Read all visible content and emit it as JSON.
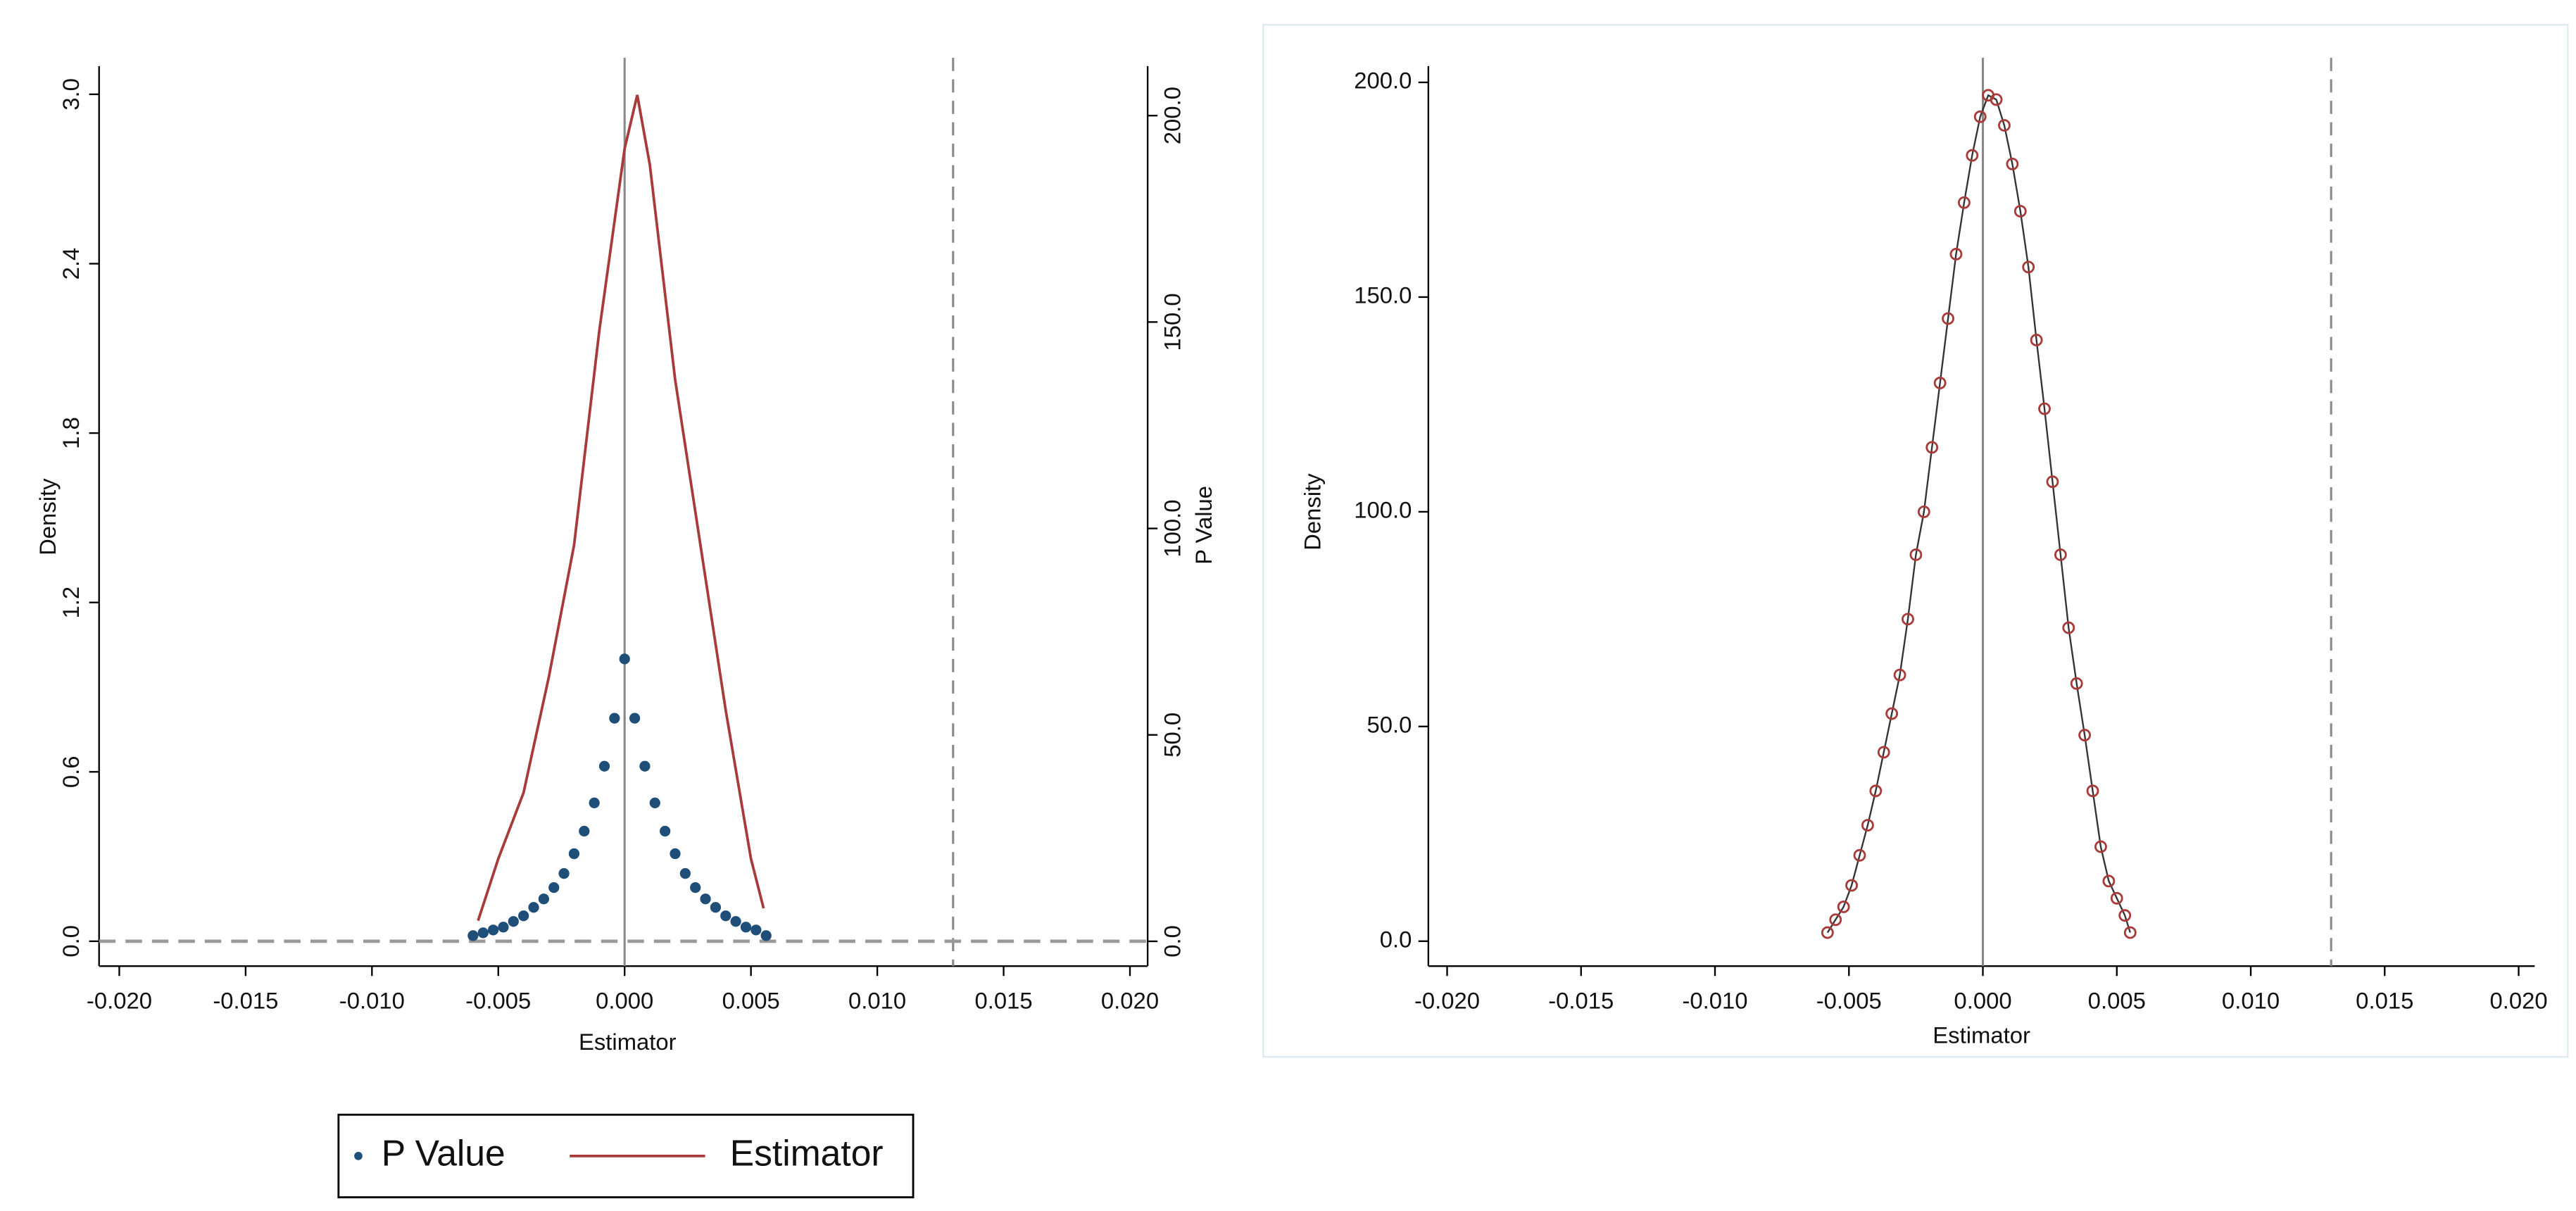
{
  "chart_data": [
    {
      "type": "overlay",
      "x_label": "Estimator",
      "y_label": "Density",
      "y2_label": "P Value",
      "xlim": [
        -0.0208,
        0.0207
      ],
      "xticks": [
        {
          "value": -0.02,
          "label": "-0.020"
        },
        -0.015,
        {
          "value": -0.01,
          "label": "-0.010"
        },
        -0.005,
        {
          "value": 0,
          "label": "0.000"
        },
        0.005,
        {
          "value": 0.01,
          "label": "0.010"
        },
        0.015,
        {
          "value": 0.02,
          "label": "0.020"
        }
      ],
      "ylim": [
        -0.088,
        3.1
      ],
      "yticks": [
        {
          "value": 0,
          "label": "0.0"
        },
        0.6,
        1.2,
        1.8,
        2.4,
        {
          "value": 3,
          "label": "3.0"
        }
      ],
      "y2lim": [
        -6,
        212
      ],
      "y2ticks": [
        {
          "value": 0,
          "label": "0.0"
        },
        {
          "value": 50,
          "label": "50.0"
        },
        {
          "value": 100,
          "label": "100.0"
        },
        {
          "value": 150,
          "label": "150.0"
        },
        {
          "value": 200,
          "label": "200.0"
        }
      ],
      "xlines": [
        {
          "value": 0,
          "style": "solid"
        },
        {
          "value": 0.013,
          "style": "dashed"
        }
      ],
      "ylines": [
        {
          "value": 0,
          "style": "dashed"
        }
      ],
      "legend": "bottom",
      "series": [
        {
          "name": "P Value",
          "kind": "scatter",
          "marker": "filled",
          "color": "#1f4e79",
          "axis": "y",
          "x": [
            -0.006,
            -0.0056,
            -0.0052,
            -0.0048,
            -0.0044,
            -0.004,
            -0.0036,
            -0.0032,
            -0.0028,
            -0.0024,
            -0.002,
            -0.0016,
            -0.0012,
            -0.0008,
            -0.0004,
            0,
            0.0004,
            0.0008,
            0.0012,
            0.0016,
            0.002,
            0.0024,
            0.0028,
            0.0032,
            0.0036,
            0.004,
            0.0044,
            0.0048,
            0.0052,
            0.0056
          ],
          "values": [
            0.02,
            0.03,
            0.04,
            0.05,
            0.07,
            0.09,
            0.12,
            0.15,
            0.19,
            0.24,
            0.31,
            0.39,
            0.49,
            0.62,
            0.79,
            1.0,
            0.79,
            0.62,
            0.49,
            0.39,
            0.31,
            0.24,
            0.19,
            0.15,
            0.12,
            0.09,
            0.07,
            0.05,
            0.04,
            0.02
          ]
        },
        {
          "name": "Estimator",
          "kind": "line",
          "color": "#a83a3a",
          "axis": "y2",
          "x": [
            -0.0058,
            -0.005,
            -0.004,
            -0.003,
            -0.002,
            -0.001,
            0,
            0.0005,
            0.001,
            0.002,
            0.003,
            0.004,
            0.005,
            0.0055
          ],
          "values": [
            5,
            20,
            36,
            64,
            96,
            148,
            192,
            205,
            188,
            136,
            96,
            56,
            20,
            8
          ]
        }
      ]
    },
    {
      "type": "scatter",
      "x_label": "Estimator",
      "y_label": "Density",
      "xlim": [
        -0.0207,
        0.0206
      ],
      "xticks": [
        {
          "value": -0.02,
          "label": "-0.020"
        },
        -0.015,
        {
          "value": -0.01,
          "label": "-0.010"
        },
        -0.005,
        {
          "value": 0,
          "label": "0.000"
        },
        0.005,
        {
          "value": 0.01,
          "label": "0.010"
        },
        0.015,
        {
          "value": 0.02,
          "label": "0.020"
        }
      ],
      "ylim": [
        -5.8,
        203.8
      ],
      "yticks": [
        {
          "value": 0,
          "label": "0.0"
        },
        {
          "value": 50,
          "label": "50.0"
        },
        {
          "value": 100,
          "label": "100.0"
        },
        {
          "value": 150,
          "label": "150.0"
        },
        {
          "value": 200,
          "label": "200.0"
        }
      ],
      "xlines": [
        {
          "value": 0,
          "style": "solid"
        },
        {
          "value": 0.013,
          "style": "dashed"
        }
      ],
      "line_color": "#333333",
      "series": [
        {
          "kind": "scatter",
          "marker": "hollow",
          "color": "#a83a3a",
          "axis": "y",
          "x": [
            -0.0058,
            -0.0055,
            -0.0052,
            -0.0049,
            -0.0046,
            -0.0043,
            -0.004,
            -0.0037,
            -0.0034,
            -0.0031,
            -0.0028,
            -0.0025,
            -0.0022,
            -0.0019,
            -0.0016,
            -0.0013,
            -0.001,
            -0.0007,
            -0.0004,
            -0.0001,
            0.0002,
            0.0005,
            0.0008,
            0.0011,
            0.0014,
            0.0017,
            0.002,
            0.0023,
            0.0026,
            0.0029,
            0.0032,
            0.0035,
            0.0038,
            0.0041,
            0.0044,
            0.0047,
            0.005,
            0.0053,
            0.0055
          ],
          "values": [
            2,
            5,
            8,
            13,
            20,
            27,
            35,
            44,
            53,
            62,
            75,
            90,
            100,
            115,
            130,
            145,
            160,
            172,
            183,
            192,
            197,
            196,
            190,
            181,
            170,
            157,
            140,
            124,
            107,
            90,
            73,
            60,
            48,
            35,
            22,
            14,
            10,
            6,
            2
          ]
        }
      ]
    }
  ]
}
